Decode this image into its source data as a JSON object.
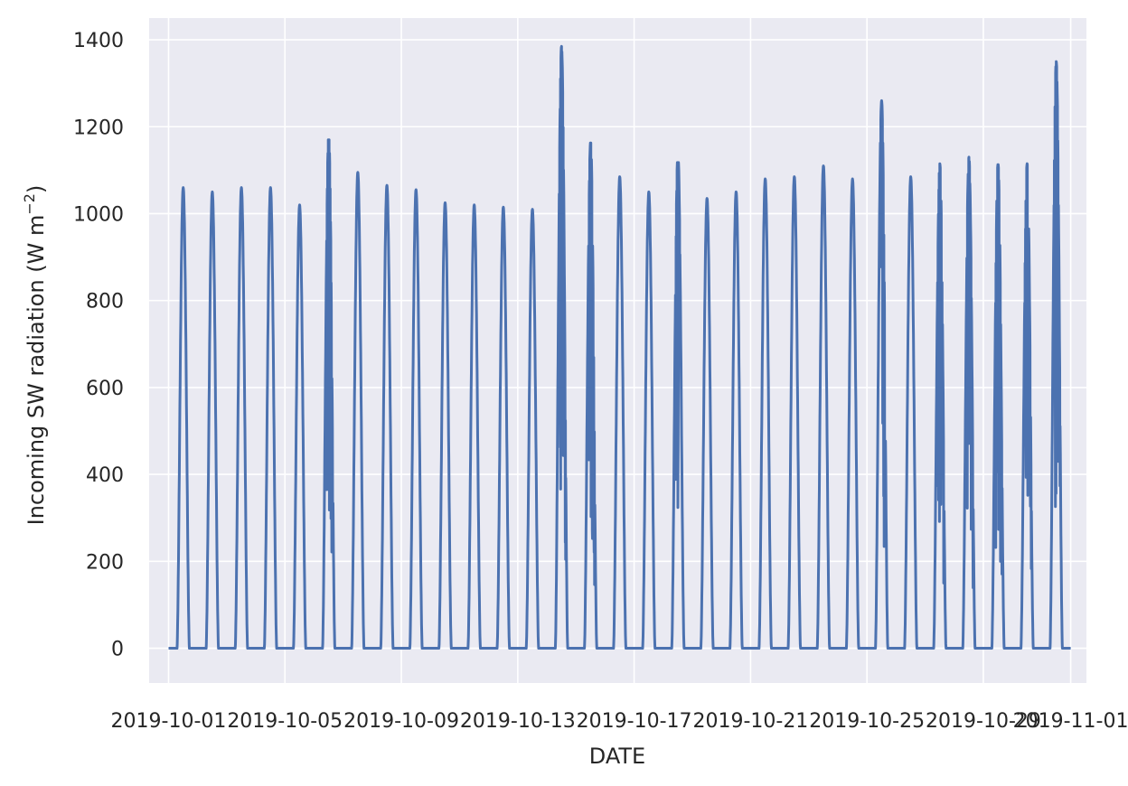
{
  "chart_data": {
    "type": "line",
    "xlabel": "DATE",
    "ylabel_main": "Incoming SW radiation (W m",
    "ylabel_sup": "−2",
    "ylabel_close": ")",
    "x_type": "date",
    "xlim": [
      "2019-09-30T08:00",
      "2019-11-01T13:00"
    ],
    "ylim": [
      -80,
      1450
    ],
    "grid": true,
    "xticks": [
      "2019-10-01",
      "2019-10-05",
      "2019-10-09",
      "2019-10-13",
      "2019-10-17",
      "2019-10-21",
      "2019-10-25",
      "2019-10-29",
      "2019-11-01"
    ],
    "yticks": [
      0,
      200,
      400,
      600,
      800,
      1000,
      1200,
      1400
    ],
    "series_color": "#4c72b0",
    "series": [
      {
        "name": "",
        "start": "2019-10-01",
        "end": "2019-11-01",
        "description_dates": [
          "2019-10-01",
          "2019-10-02",
          "2019-10-03",
          "2019-10-04",
          "2019-10-05",
          "2019-10-06",
          "2019-10-07",
          "2019-10-08",
          "2019-10-09",
          "2019-10-10",
          "2019-10-11",
          "2019-10-12",
          "2019-10-13",
          "2019-10-14",
          "2019-10-15",
          "2019-10-16",
          "2019-10-17",
          "2019-10-18",
          "2019-10-19",
          "2019-10-20",
          "2019-10-21",
          "2019-10-22",
          "2019-10-23",
          "2019-10-24",
          "2019-10-25",
          "2019-10-26",
          "2019-10-27",
          "2019-10-28",
          "2019-10-29",
          "2019-10-30",
          "2019-10-31"
        ],
        "daily_peak": [
          1060,
          1050,
          1060,
          1060,
          1020,
          1180,
          1095,
          1065,
          1055,
          1025,
          1020,
          1015,
          1010,
          1385,
          1165,
          1085,
          1050,
          1140,
          1035,
          1050,
          1080,
          1085,
          1110,
          1080,
          1260,
          1085,
          1115,
          1130,
          1115,
          1115,
          1350
        ]
      }
    ]
  }
}
